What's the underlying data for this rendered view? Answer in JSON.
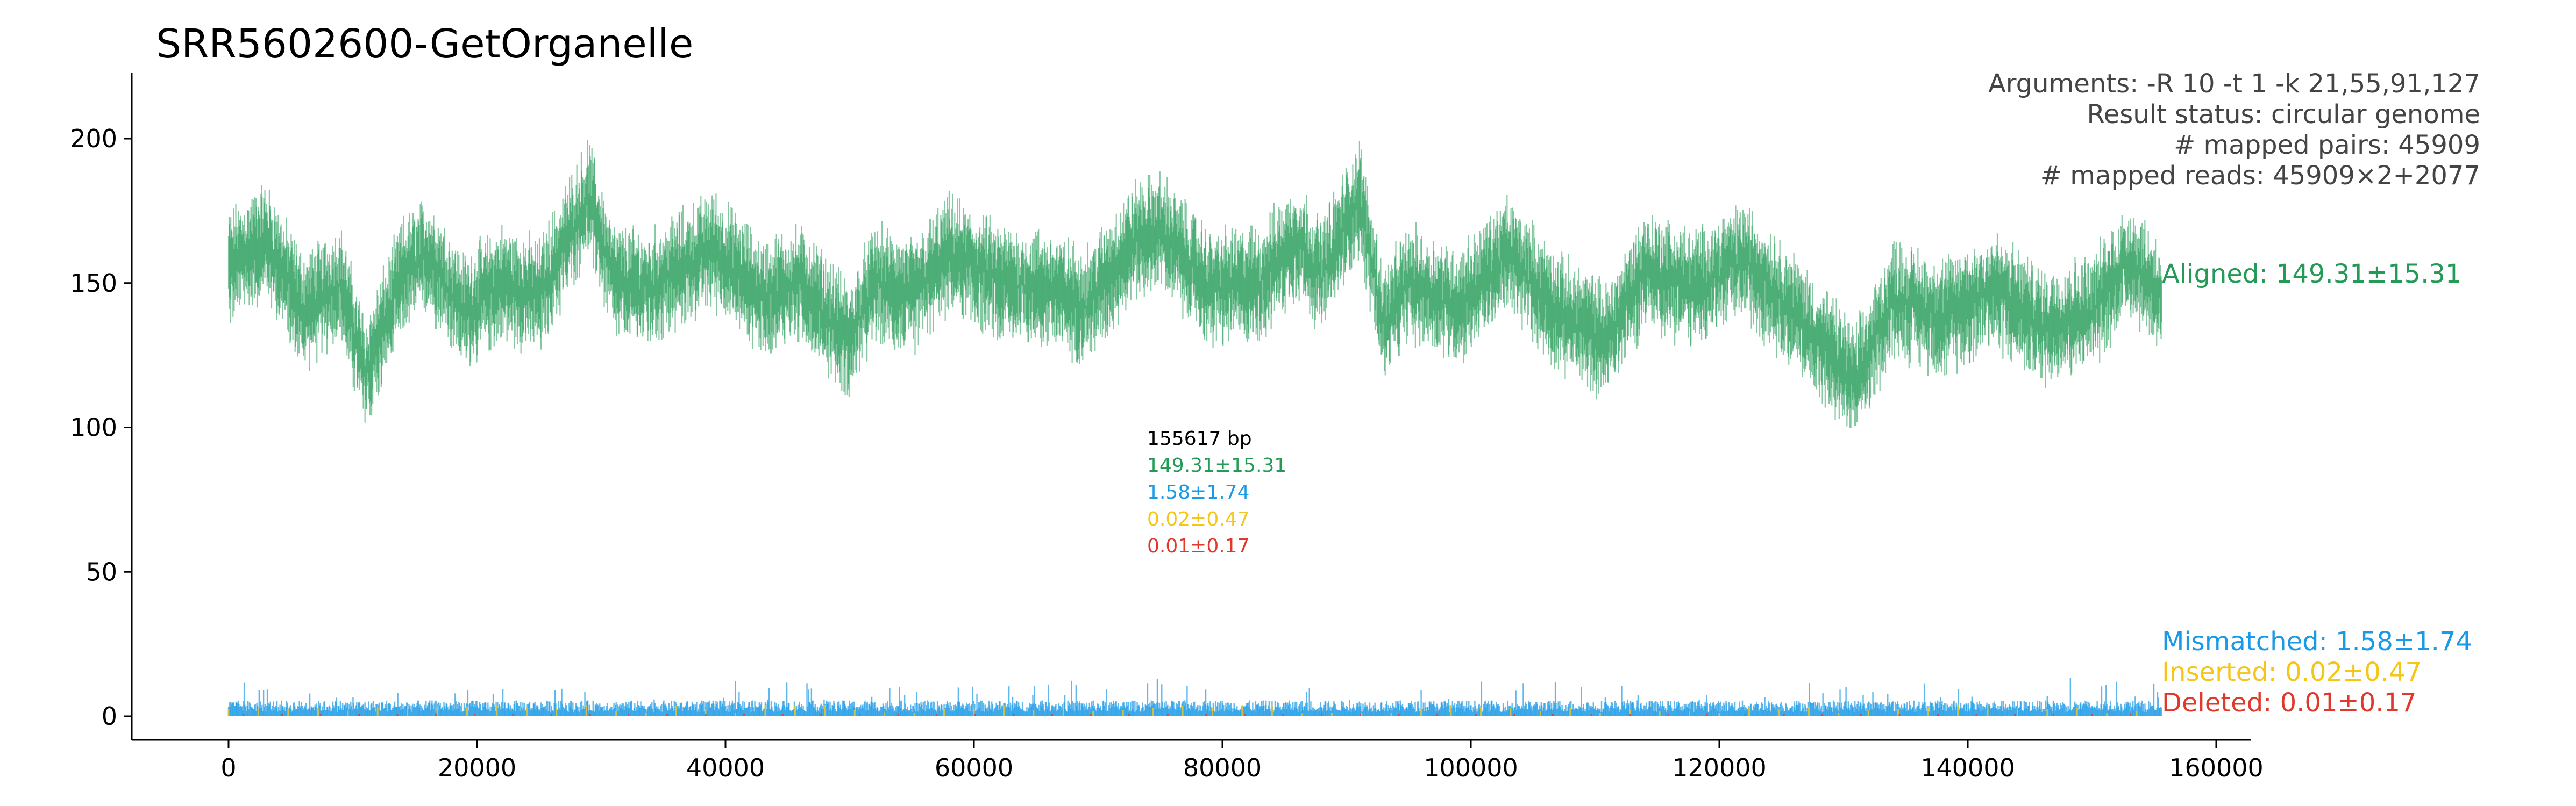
{
  "chart_data": {
    "type": "scatter",
    "title": "SRR5602600-GetOrganelle",
    "xlabel": "",
    "ylabel": "",
    "xlim": [
      -10000,
      165000
    ],
    "ylim": [
      -10,
      222
    ],
    "x_ticks": [
      0,
      20000,
      40000,
      60000,
      80000,
      100000,
      120000,
      140000,
      160000
    ],
    "x_tick_labels": [
      "0",
      "20000",
      "40000",
      "60000",
      "80000",
      "100000",
      "120000",
      "140000",
      "160000"
    ],
    "y_ticks": [
      0,
      50,
      100,
      150,
      200
    ],
    "y_tick_labels": [
      "0",
      "50",
      "100",
      "150",
      "200"
    ],
    "genome_length": 155617,
    "info_lines": [
      "Arguments: -R 10 -t 1 -k 21,55,91,127",
      "Result status: circular genome",
      "# mapped pairs: 45909",
      "# mapped reads: 45909×2+2077"
    ],
    "center_labels": {
      "length": "155617 bp",
      "aligned": "149.31±15.31",
      "mismatched": "1.58±1.74",
      "inserted": "0.02±0.47",
      "deleted": "0.01±0.17"
    },
    "series": [
      {
        "name": "Aligned",
        "label": "Aligned: 149.31±15.31",
        "mean": 149.31,
        "sd": 15.31,
        "color": "#239b56",
        "profile_x": [
          0,
          3000,
          6000,
          9000,
          11000,
          14000,
          16000,
          19000,
          22000,
          25000,
          29000,
          31000,
          34000,
          39000,
          43000,
          46000,
          50000,
          52000,
          55000,
          58000,
          62000,
          66000,
          69000,
          73000,
          75000,
          79000,
          83000,
          86000,
          88000,
          91000,
          93000,
          95000,
          99000,
          103000,
          107000,
          111000,
          114000,
          118000,
          122000,
          126000,
          131000,
          134000,
          138000,
          142000,
          146000,
          150000,
          153000,
          155617
        ],
        "profile_y": [
          155,
          165,
          140,
          150,
          118,
          152,
          160,
          140,
          150,
          145,
          180,
          150,
          148,
          162,
          145,
          150,
          130,
          150,
          145,
          160,
          150,
          148,
          142,
          165,
          168,
          148,
          150,
          165,
          152,
          180,
          135,
          150,
          142,
          160,
          140,
          130,
          155,
          148,
          158,
          140,
          115,
          145,
          138,
          148,
          135,
          140,
          158,
          145
        ]
      },
      {
        "name": "Mismatched",
        "label": "Mismatched: 1.58±1.74",
        "mean": 1.58,
        "sd": 1.74,
        "color": "#1a9ae6"
      },
      {
        "name": "Inserted",
        "label": "Inserted: 0.02±0.47",
        "mean": 0.02,
        "sd": 0.47,
        "color": "#f5c518"
      },
      {
        "name": "Deleted",
        "label": "Deleted: 0.01±0.17",
        "mean": 0.01,
        "sd": 0.17,
        "color": "#e0392b"
      }
    ]
  }
}
